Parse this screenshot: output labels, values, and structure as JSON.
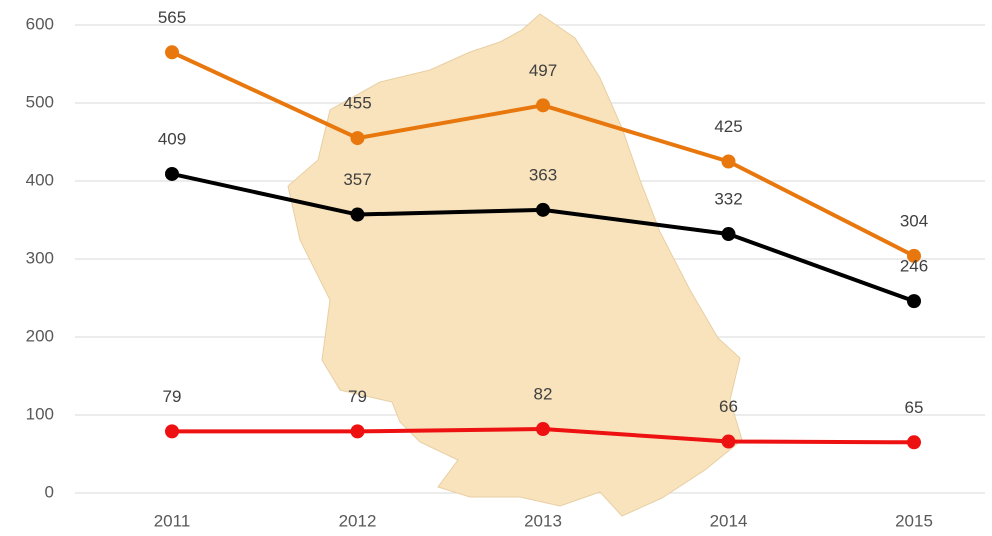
{
  "chart_data": {
    "type": "line",
    "categories": [
      "2011",
      "2012",
      "2013",
      "2014",
      "2015"
    ],
    "series": [
      {
        "color": "#e8770e",
        "values": [
          565,
          455,
          497,
          425,
          304
        ]
      },
      {
        "color": "#000000",
        "values": [
          409,
          357,
          363,
          332,
          246
        ]
      },
      {
        "color": "#ee1111",
        "values": [
          79,
          79,
          82,
          66,
          65
        ]
      }
    ],
    "ylim": [
      0,
      600
    ],
    "yticks": [
      0,
      100,
      200,
      300,
      400,
      500,
      600
    ],
    "grid": true
  }
}
